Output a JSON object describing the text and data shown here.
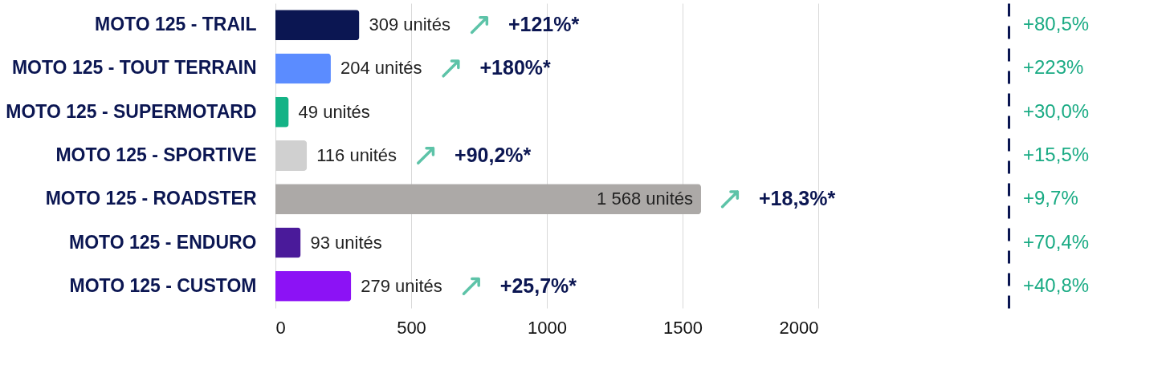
{
  "chart_data": {
    "type": "bar",
    "orientation": "horizontal",
    "categories": [
      "MOTO 125 - TRAIL",
      "MOTO 125 - TOUT TERRAIN",
      "MOTO 125 - SUPERMOTARD",
      "MOTO 125 - SPORTIVE",
      "MOTO 125 - ROADSTER",
      "MOTO 125 - ENDURO",
      "MOTO 125 - CUSTOM"
    ],
    "values": [
      309,
      204,
      49,
      116,
      1568,
      93,
      279
    ],
    "colors": [
      "#0b1652",
      "#5b8cff",
      "#14b386",
      "#d0d0d0",
      "#aca9a7",
      "#4a1a9a",
      "#8c12f5"
    ],
    "value_labels": [
      "309 unités",
      "204 unités",
      "49 unités",
      "116 unités",
      "1 568 unités",
      "93 unités",
      "279 unités"
    ],
    "xlim": [
      0,
      2000
    ],
    "xticks": [
      0,
      500,
      1000,
      1500,
      2000
    ],
    "grid": "x",
    "annotations": [
      "+121%*",
      "+180%*",
      "+90,2%*",
      "+18,3%*",
      "+25,7%*",
      "+80,5%",
      "+223%",
      "+30,0%",
      "+15,5%",
      "+9,7%",
      "+70,4%",
      "+40,8%"
    ]
  }
}
